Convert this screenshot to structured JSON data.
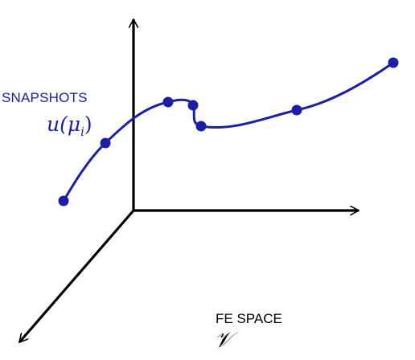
{
  "snapshots": {
    "label": "SNAPSHOTS",
    "formula_function": "u(",
    "formula_mu": "μ",
    "formula_subscript": "i",
    "formula_close": ")",
    "color": "#1a1fa6"
  },
  "fe_space": {
    "label": "FE SPACE",
    "symbol": "𝒱"
  },
  "colors": {
    "axes": "#000000",
    "curve": "#1a1fa6",
    "points": "#1a1fa6"
  },
  "curve": {
    "point_count": 7
  }
}
